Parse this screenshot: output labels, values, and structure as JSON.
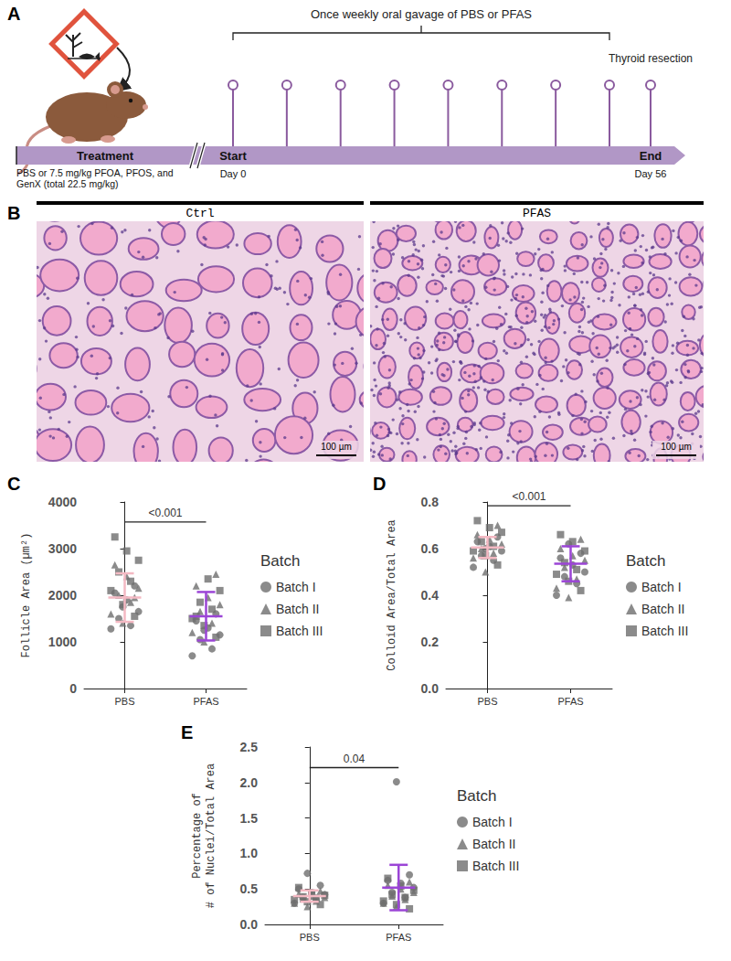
{
  "figure": {
    "diagram": {
      "panel": "A",
      "bracket_label": "Once weekly oral gavage of PBS or PFAS",
      "end_label": "Thyroid resection",
      "bar_label": "Treatment",
      "start": "Start",
      "end": "End",
      "start_day": "Day 0",
      "end_day": "Day 56",
      "treatment_note": "PBS or 7.5 mg/kg PFOA, PFOS, and GenX (total 22.5 mg/kg)",
      "doses": 8
    },
    "histology": {
      "panel": "B",
      "panels": [
        "Ctrl",
        "PFAS"
      ],
      "scale_bar": "100 µm"
    }
  },
  "chart_data": [
    {
      "type": "scatter",
      "panel": "C",
      "y_label": "Follicle Area (µm²)",
      "categories": [
        "PBS",
        "PFAS"
      ],
      "ylim": [
        0,
        4000
      ],
      "yticks": [
        0,
        1000,
        2000,
        3000,
        4000
      ],
      "grid": false,
      "legend": "right",
      "legend_title": "Batch",
      "groups": [
        {
          "name": "PBS",
          "color": "#f4b9c3",
          "mean": 1950,
          "sd": 520
        },
        {
          "name": "PFAS",
          "color": "#9b45d6",
          "mean": 1550,
          "sd": 520
        }
      ],
      "annotations": [
        {
          "text": "<0.001",
          "between": [
            "PBS",
            "PFAS"
          ]
        }
      ],
      "series": [
        {
          "name": "Batch I",
          "marker": "circle",
          "color": "#6e6e6e",
          "x": [
            "PBS",
            "PBS",
            "PBS",
            "PBS",
            "PBS",
            "PBS",
            "PBS",
            "PBS",
            "PFAS",
            "PFAS",
            "PFAS",
            "PFAS",
            "PFAS",
            "PFAS",
            "PFAS",
            "PFAS"
          ],
          "values": [
            1280,
            1350,
            1500,
            1650,
            1900,
            2050,
            2200,
            1750,
            700,
            850,
            1050,
            1150,
            1300,
            1450,
            1600,
            1250
          ]
        },
        {
          "name": "Batch II",
          "marker": "triangle",
          "color": "#6e6e6e",
          "x": [
            "PBS",
            "PBS",
            "PBS",
            "PBS",
            "PBS",
            "PBS",
            "PBS",
            "PBS",
            "PFAS",
            "PFAS",
            "PFAS",
            "PFAS",
            "PFAS",
            "PFAS",
            "PFAS",
            "PFAS"
          ],
          "values": [
            1400,
            1600,
            1850,
            2000,
            2150,
            2400,
            2650,
            1950,
            1000,
            1200,
            1400,
            1650,
            1800,
            1950,
            2200,
            2450
          ]
        },
        {
          "name": "Batch III",
          "marker": "square",
          "color": "#6e6e6e",
          "x": [
            "PBS",
            "PBS",
            "PBS",
            "PBS",
            "PBS",
            "PBS",
            "PBS",
            "PBS",
            "PFAS",
            "PFAS",
            "PFAS",
            "PFAS",
            "PFAS",
            "PFAS",
            "PFAS",
            "PFAS"
          ],
          "values": [
            1550,
            1800,
            2100,
            2300,
            2500,
            2750,
            2950,
            3250,
            1100,
            1350,
            1500,
            1700,
            1850,
            2100,
            2350,
            1550
          ]
        }
      ]
    },
    {
      "type": "scatter",
      "panel": "D",
      "y_label": "Colloid Area/Total Area",
      "categories": [
        "PBS",
        "PFAS"
      ],
      "ylim": [
        0,
        0.8
      ],
      "yticks": [
        {
          "value": 0,
          "label": "0.0"
        },
        0.2,
        0.4,
        0.6,
        0.8
      ],
      "grid": false,
      "legend": "right",
      "legend_title": "Batch",
      "groups": [
        {
          "name": "PBS",
          "color": "#f4b9c3",
          "mean": 0.605,
          "sd": 0.045
        },
        {
          "name": "PFAS",
          "color": "#9b45d6",
          "mean": 0.535,
          "sd": 0.075
        }
      ],
      "annotations": [
        {
          "text": "<0.001",
          "between": [
            "PBS",
            "PFAS"
          ]
        }
      ],
      "series": [
        {
          "name": "Batch I",
          "marker": "circle",
          "color": "#6e6e6e",
          "x": [
            "PBS",
            "PBS",
            "PBS",
            "PBS",
            "PBS",
            "PBS",
            "PBS",
            "PBS",
            "PFAS",
            "PFAS",
            "PFAS",
            "PFAS",
            "PFAS",
            "PFAS",
            "PFAS",
            "PFAS"
          ],
          "values": [
            0.52,
            0.55,
            0.57,
            0.59,
            0.61,
            0.63,
            0.65,
            0.6,
            0.4,
            0.45,
            0.48,
            0.5,
            0.53,
            0.56,
            0.58,
            0.62
          ]
        },
        {
          "name": "Batch II",
          "marker": "triangle",
          "color": "#6e6e6e",
          "x": [
            "PBS",
            "PBS",
            "PBS",
            "PBS",
            "PBS",
            "PBS",
            "PBS",
            "PBS",
            "PFAS",
            "PFAS",
            "PFAS",
            "PFAS",
            "PFAS",
            "PFAS",
            "PFAS",
            "PFAS"
          ],
          "values": [
            0.5,
            0.56,
            0.58,
            0.6,
            0.62,
            0.64,
            0.66,
            0.7,
            0.39,
            0.43,
            0.47,
            0.52,
            0.55,
            0.57,
            0.6,
            0.64
          ]
        },
        {
          "name": "Batch III",
          "marker": "square",
          "color": "#6e6e6e",
          "x": [
            "PBS",
            "PBS",
            "PBS",
            "PBS",
            "PBS",
            "PBS",
            "PBS",
            "PBS",
            "PFAS",
            "PFAS",
            "PFAS",
            "PFAS",
            "PFAS",
            "PFAS",
            "PFAS",
            "PFAS"
          ],
          "values": [
            0.53,
            0.57,
            0.59,
            0.61,
            0.63,
            0.67,
            0.69,
            0.72,
            0.42,
            0.46,
            0.49,
            0.51,
            0.54,
            0.59,
            0.63,
            0.66
          ]
        }
      ]
    },
    {
      "type": "scatter",
      "panel": "E",
      "y_label": "Percentage of\n# of Nuclei/Total Area",
      "categories": [
        "PBS",
        "PFAS"
      ],
      "ylim": [
        0,
        2.5
      ],
      "yticks": [
        {
          "value": 0,
          "label": "0.0"
        },
        0.5,
        {
          "value": 1,
          "label": "1.0"
        },
        1.5,
        {
          "value": 2,
          "label": "2.0"
        },
        2.5
      ],
      "grid": false,
      "legend": "right",
      "legend_title": "Batch",
      "groups": [
        {
          "name": "PBS",
          "color": "#f4b9c3",
          "mean": 0.4,
          "sd": 0.08
        },
        {
          "name": "PFAS",
          "color": "#9b45d6",
          "mean": 0.52,
          "sd": 0.32
        }
      ],
      "annotations": [
        {
          "text": "0.04",
          "between": [
            "PBS",
            "PFAS"
          ]
        }
      ],
      "series": [
        {
          "name": "Batch I",
          "marker": "circle",
          "color": "#6e6e6e",
          "x": [
            "PBS",
            "PBS",
            "PBS",
            "PBS",
            "PBS",
            "PBS",
            "PBS",
            "PBS",
            "PFAS",
            "PFAS",
            "PFAS",
            "PFAS",
            "PFAS",
            "PFAS",
            "PFAS",
            "PFAS"
          ],
          "values": [
            0.3,
            0.35,
            0.38,
            0.42,
            0.45,
            0.5,
            0.55,
            0.72,
            0.3,
            0.38,
            0.45,
            0.52,
            0.58,
            0.62,
            0.7,
            2.01
          ]
        },
        {
          "name": "Batch II",
          "marker": "triangle",
          "color": "#6e6e6e",
          "x": [
            "PBS",
            "PBS",
            "PBS",
            "PBS",
            "PBS",
            "PBS",
            "PBS",
            "PBS",
            "PFAS",
            "PFAS",
            "PFAS",
            "PFAS",
            "PFAS",
            "PFAS",
            "PFAS",
            "PFAS"
          ],
          "values": [
            0.25,
            0.3,
            0.33,
            0.36,
            0.38,
            0.4,
            0.43,
            0.47,
            0.25,
            0.3,
            0.35,
            0.4,
            0.45,
            0.5,
            0.55,
            0.6
          ]
        },
        {
          "name": "Batch III",
          "marker": "square",
          "color": "#6e6e6e",
          "x": [
            "PBS",
            "PBS",
            "PBS",
            "PBS",
            "PBS",
            "PBS",
            "PBS",
            "PBS",
            "PFAS",
            "PFAS",
            "PFAS",
            "PFAS",
            "PFAS",
            "PFAS",
            "PFAS",
            "PFAS"
          ],
          "values": [
            0.28,
            0.32,
            0.35,
            0.37,
            0.39,
            0.41,
            0.44,
            0.52,
            0.22,
            0.28,
            0.33,
            0.38,
            0.42,
            0.48,
            0.54,
            0.65
          ]
        }
      ]
    }
  ]
}
